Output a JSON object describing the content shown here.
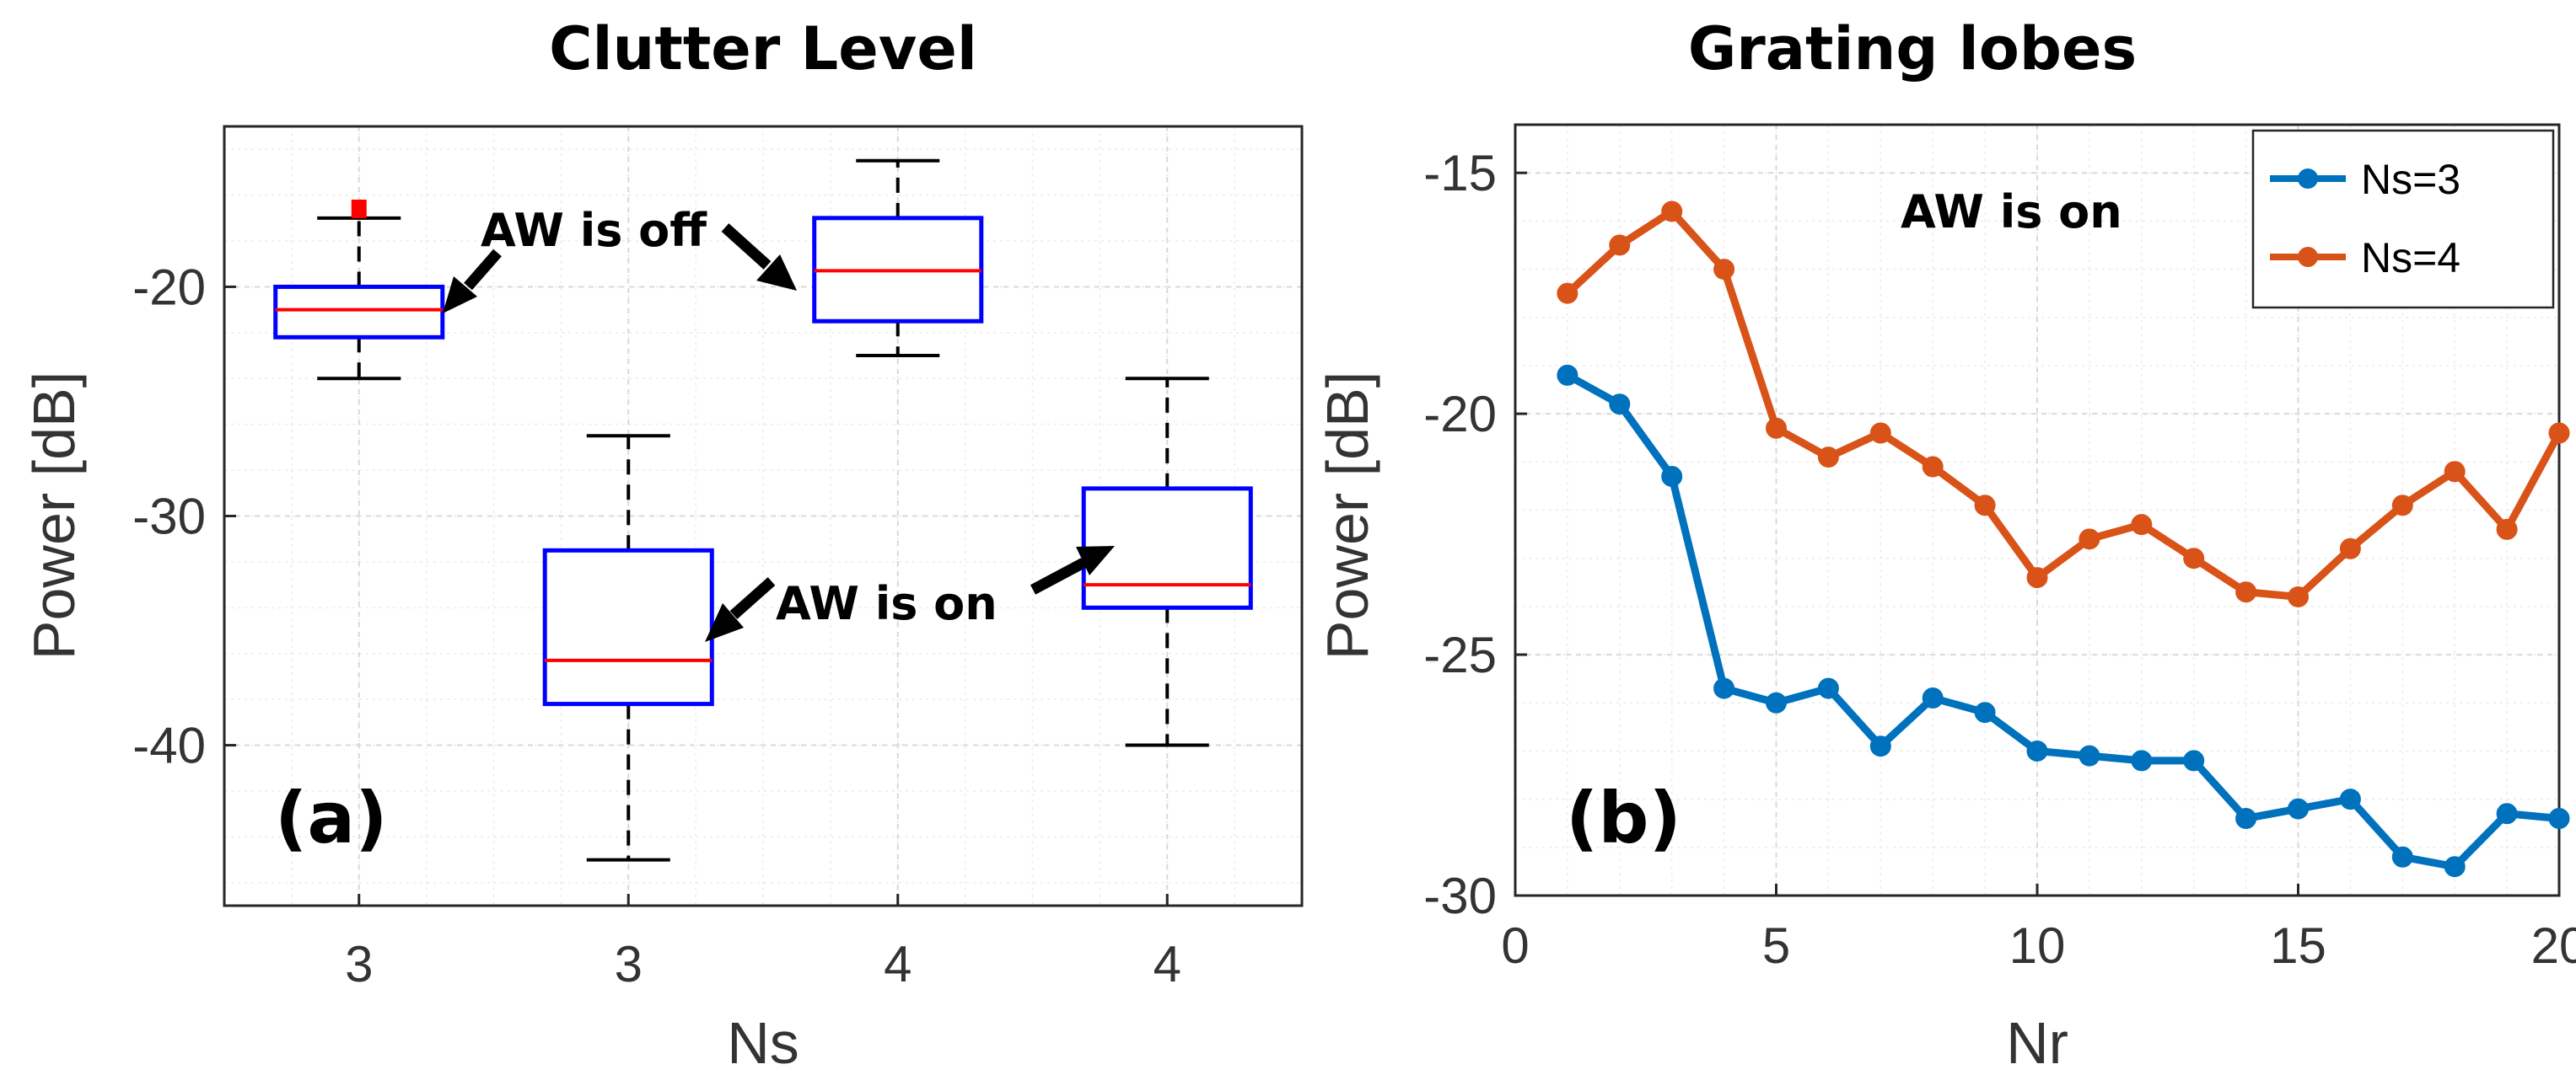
{
  "chart_data": [
    {
      "type": "box",
      "title": "Clutter Level",
      "xlabel": "Ns",
      "ylabel": "Power [dB]",
      "ylim": [
        -47,
        -13
      ],
      "yticks": [
        -40,
        -30,
        -20
      ],
      "panel_label": "(a)",
      "categories": [
        "3",
        "3",
        "4",
        "4"
      ],
      "boxes": [
        {
          "condition": "AW is off",
          "whisker_low": -24.0,
          "q1": -22.2,
          "median": -21.0,
          "q3": -20.0,
          "whisker_high": -17.0,
          "outliers": [
            -16.6
          ]
        },
        {
          "condition": "AW is on",
          "whisker_low": -45.0,
          "q1": -38.2,
          "median": -36.3,
          "q3": -31.5,
          "whisker_high": -26.5,
          "outliers": []
        },
        {
          "condition": "AW is off",
          "whisker_low": -23.0,
          "q1": -21.5,
          "median": -19.3,
          "q3": -17.0,
          "whisker_high": -14.5,
          "outliers": []
        },
        {
          "condition": "AW is on",
          "whisker_low": -40.0,
          "q1": -34.0,
          "median": -33.0,
          "q3": -28.8,
          "whisker_high": -24.0,
          "outliers": []
        }
      ],
      "annotations": [
        "AW is off",
        "AW is on"
      ],
      "colors": {
        "box": "#0000ff",
        "median": "#ff0000",
        "whisker": "#000000",
        "outlier": "#ff0000"
      }
    },
    {
      "type": "line",
      "title": "Grating lobes",
      "xlabel": "Nr",
      "ylabel": "Power [dB]",
      "xlim": [
        0,
        20
      ],
      "ylim": [
        -30,
        -14
      ],
      "xticks": [
        0,
        5,
        10,
        15,
        20
      ],
      "yticks": [
        -30,
        -25,
        -20,
        -15
      ],
      "panel_label": "(b)",
      "annotation": "AW is on",
      "legend_position": "top-right",
      "x": [
        1,
        2,
        3,
        4,
        5,
        6,
        7,
        8,
        9,
        10,
        11,
        12,
        13,
        14,
        15,
        16,
        17,
        18,
        19,
        20
      ],
      "series": [
        {
          "name": "Ns=3",
          "color": "#0072bd",
          "values": [
            -19.2,
            -19.8,
            -21.3,
            -25.7,
            -26.0,
            -25.7,
            -26.9,
            -25.9,
            -26.2,
            -27.0,
            -27.1,
            -27.2,
            -27.2,
            -28.4,
            -28.2,
            -28.0,
            -29.2,
            -29.4,
            -28.3,
            -28.4
          ]
        },
        {
          "name": "Ns=4",
          "color": "#d95319",
          "values": [
            -17.5,
            -16.5,
            -15.8,
            -17.0,
            -20.3,
            -20.9,
            -20.4,
            -21.1,
            -21.9,
            -23.4,
            -22.6,
            -22.3,
            -23.0,
            -23.7,
            -23.8,
            -22.8,
            -21.9,
            -21.2,
            -22.4,
            -20.4
          ]
        }
      ]
    }
  ]
}
